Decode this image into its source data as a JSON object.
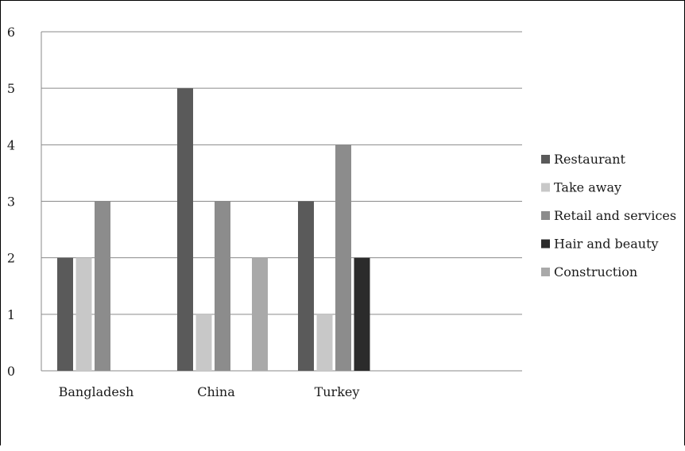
{
  "chart_data": {
    "type": "bar",
    "categories": [
      "Bangladesh",
      "China",
      "Turkey"
    ],
    "series": [
      {
        "name": "Restaurant",
        "color": "#5a5a5a",
        "values": [
          2,
          5,
          3
        ]
      },
      {
        "name": "Take away",
        "color": "#c8c8c8",
        "values": [
          2,
          1,
          1
        ]
      },
      {
        "name": "Retail and services",
        "color": "#8c8c8c",
        "values": [
          3,
          3,
          4
        ]
      },
      {
        "name": "Hair and beauty",
        "color": "#2b2b2b",
        "values": [
          0,
          0,
          2
        ]
      },
      {
        "name": "Construction",
        "color": "#a9a9a9",
        "values": [
          0,
          2,
          0
        ]
      }
    ],
    "yticks": [
      "0",
      "1",
      "2",
      "3",
      "4",
      "5",
      "6"
    ],
    "ylim": [
      0,
      6
    ],
    "grid": true,
    "legend_position": "right"
  }
}
